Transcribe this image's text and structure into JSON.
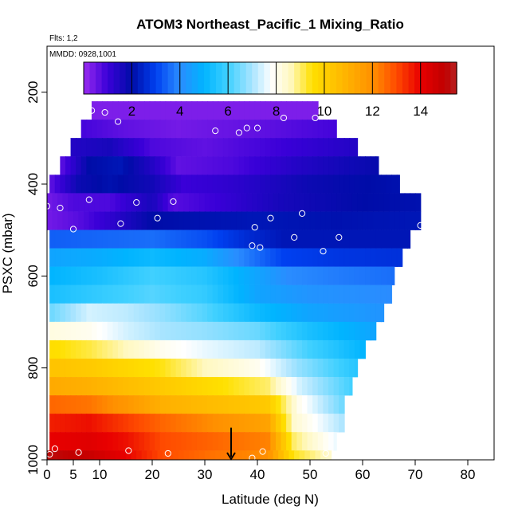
{
  "title": "ATOM3 Northeast_Pacific_1 Mixing_Ratio",
  "flights_label": "Flts: 1,2",
  "mmdd_label": "MMDD: 0928,1001",
  "chart_data": {
    "type": "heatmap",
    "title": "ATOM3 Northeast_Pacific_1 Mixing_Ratio",
    "xlabel": "Latitude (deg N)",
    "ylabel": "PSXC (mbar)",
    "xlim": [
      0,
      85
    ],
    "ylim": [
      1000,
      100
    ],
    "x_ticks": [
      0,
      5,
      10,
      20,
      30,
      40,
      50,
      60,
      70,
      80
    ],
    "y_ticks": [
      200,
      400,
      600,
      800,
      1000
    ],
    "colorbar": {
      "ticks": [
        2,
        4,
        6,
        8,
        10,
        12,
        14
      ],
      "range": [
        0,
        15.5
      ],
      "stops": [
        {
          "v": 0,
          "c": "#9a2bf0"
        },
        {
          "v": 1,
          "c": "#3a00d8"
        },
        {
          "v": 2,
          "c": "#000ca8"
        },
        {
          "v": 3,
          "c": "#0040f0"
        },
        {
          "v": 4,
          "c": "#2a8cff"
        },
        {
          "v": 5,
          "c": "#00b4ff"
        },
        {
          "v": 6,
          "c": "#40d0ff"
        },
        {
          "v": 7,
          "c": "#a8e4ff"
        },
        {
          "v": 7.8,
          "c": "#ffffff"
        },
        {
          "v": 8.6,
          "c": "#fff8c0"
        },
        {
          "v": 9.5,
          "c": "#ffe000"
        },
        {
          "v": 11,
          "c": "#ffb000"
        },
        {
          "v": 12,
          "c": "#ff9000"
        },
        {
          "v": 13,
          "c": "#ff4a00"
        },
        {
          "v": 14,
          "c": "#e80000"
        },
        {
          "v": 15,
          "c": "#c00000"
        },
        {
          "v": 15.5,
          "c": "#b82020"
        }
      ]
    },
    "layers": [
      {
        "p_top": 220,
        "p_bot": 260,
        "x0": 8.5,
        "x1": 51.5,
        "samples": [
          [
            8.5,
            0.3
          ],
          [
            51.5,
            0.3
          ]
        ]
      },
      {
        "p_top": 260,
        "p_bot": 300,
        "x0": 6.5,
        "x1": 55,
        "samples": [
          [
            6.5,
            0.9
          ],
          [
            15,
            0.6
          ],
          [
            25,
            0.4
          ],
          [
            40,
            0.6
          ],
          [
            55,
            0.9
          ]
        ]
      },
      {
        "p_top": 300,
        "p_bot": 340,
        "x0": 4.5,
        "x1": 59,
        "samples": [
          [
            4.5,
            1.4
          ],
          [
            12,
            1.6
          ],
          [
            20,
            0.8
          ],
          [
            30,
            0.6
          ],
          [
            45,
            1.0
          ],
          [
            59,
            1.4
          ]
        ]
      },
      {
        "p_top": 340,
        "p_bot": 380,
        "x0": 2.5,
        "x1": 63,
        "samples": [
          [
            2.5,
            0.6
          ],
          [
            8,
            2.0
          ],
          [
            14,
            2.2
          ],
          [
            20,
            1.4
          ],
          [
            25,
            0.6
          ],
          [
            35,
            0.8
          ],
          [
            48,
            1.4
          ],
          [
            63,
            1.9
          ]
        ]
      },
      {
        "p_top": 380,
        "p_bot": 420,
        "x0": 0.5,
        "x1": 67,
        "samples": [
          [
            0.5,
            0.6
          ],
          [
            6,
            1.8
          ],
          [
            12,
            2.1
          ],
          [
            20,
            1.7
          ],
          [
            26,
            1.0
          ],
          [
            35,
            1.2
          ],
          [
            50,
            1.8
          ],
          [
            67,
            2.1
          ]
        ]
      },
      {
        "p_top": 420,
        "p_bot": 460,
        "x0": 0,
        "x1": 71,
        "samples": [
          [
            0,
            0.4
          ],
          [
            5,
            0.8
          ],
          [
            12,
            0.8
          ],
          [
            20,
            1.6
          ],
          [
            24,
            0.7
          ],
          [
            32,
            1.0
          ],
          [
            44,
            1.6
          ],
          [
            60,
            2.0
          ],
          [
            71,
            2.1
          ]
        ]
      },
      {
        "p_top": 460,
        "p_bot": 500,
        "x0": 0,
        "x1": 71,
        "samples": [
          [
            0,
            0.4
          ],
          [
            6,
            0.7
          ],
          [
            12,
            1.2
          ],
          [
            20,
            2.0
          ],
          [
            28,
            2.1
          ],
          [
            40,
            2.2
          ],
          [
            55,
            2.1
          ],
          [
            71,
            2.2
          ]
        ]
      },
      {
        "p_top": 500,
        "p_bot": 540,
        "x0": 0.5,
        "x1": 69,
        "samples": [
          [
            0.5,
            3.4
          ],
          [
            10,
            3.5
          ],
          [
            20,
            3.6
          ],
          [
            30,
            3.2
          ],
          [
            38,
            2.6
          ],
          [
            45,
            2.2
          ],
          [
            55,
            2.2
          ],
          [
            69,
            2.2
          ]
        ]
      },
      {
        "p_top": 540,
        "p_bot": 580,
        "x0": 0.5,
        "x1": 67.5,
        "samples": [
          [
            0.5,
            4.6
          ],
          [
            10,
            4.8
          ],
          [
            20,
            5.2
          ],
          [
            30,
            4.8
          ],
          [
            38,
            3.8
          ],
          [
            45,
            3.0
          ],
          [
            55,
            2.8
          ],
          [
            67.5,
            2.7
          ]
        ]
      },
      {
        "p_top": 580,
        "p_bot": 620,
        "x0": 0.5,
        "x1": 66,
        "samples": [
          [
            0.5,
            5.0
          ],
          [
            10,
            5.4
          ],
          [
            20,
            6.0
          ],
          [
            30,
            5.6
          ],
          [
            38,
            4.8
          ],
          [
            46,
            4.0
          ],
          [
            55,
            3.8
          ],
          [
            66,
            3.6
          ]
        ]
      },
      {
        "p_top": 620,
        "p_bot": 660,
        "x0": 0.5,
        "x1": 65.5,
        "samples": [
          [
            0.5,
            5.4
          ],
          [
            10,
            5.8
          ],
          [
            20,
            6.2
          ],
          [
            30,
            5.8
          ],
          [
            40,
            4.6
          ],
          [
            50,
            4.2
          ],
          [
            65.5,
            4.0
          ]
        ]
      },
      {
        "p_top": 660,
        "p_bot": 700,
        "x0": 0.5,
        "x1": 64,
        "samples": [
          [
            0.5,
            6.4
          ],
          [
            8,
            7.4
          ],
          [
            15,
            7.2
          ],
          [
            22,
            6.8
          ],
          [
            30,
            6.2
          ],
          [
            40,
            5.2
          ],
          [
            50,
            4.6
          ],
          [
            64,
            4.2
          ]
        ]
      },
      {
        "p_top": 700,
        "p_bot": 740,
        "x0": 0.5,
        "x1": 62.5,
        "samples": [
          [
            0.5,
            8.2
          ],
          [
            8,
            8.0
          ],
          [
            15,
            7.4
          ],
          [
            22,
            7.0
          ],
          [
            30,
            6.8
          ],
          [
            40,
            6.4
          ],
          [
            50,
            5.4
          ],
          [
            62.5,
            4.6
          ]
        ]
      },
      {
        "p_top": 740,
        "p_bot": 780,
        "x0": 0.5,
        "x1": 60.5,
        "samples": [
          [
            0.5,
            9.6
          ],
          [
            8,
            9.2
          ],
          [
            15,
            8.6
          ],
          [
            22,
            8.0
          ],
          [
            30,
            7.6
          ],
          [
            40,
            7.2
          ],
          [
            50,
            6.0
          ],
          [
            60.5,
            5.0
          ]
        ]
      },
      {
        "p_top": 780,
        "p_bot": 820,
        "x0": 0.5,
        "x1": 59,
        "samples": [
          [
            0.5,
            10.4
          ],
          [
            8,
            10.2
          ],
          [
            15,
            9.8
          ],
          [
            22,
            9.4
          ],
          [
            30,
            8.6
          ],
          [
            40,
            8.0
          ],
          [
            48,
            6.8
          ],
          [
            59,
            5.6
          ]
        ]
      },
      {
        "p_top": 820,
        "p_bot": 860,
        "x0": 0.5,
        "x1": 58,
        "samples": [
          [
            0.5,
            11.2
          ],
          [
            8,
            11.0
          ],
          [
            15,
            10.6
          ],
          [
            22,
            10.2
          ],
          [
            32,
            9.6
          ],
          [
            42,
            9.0
          ],
          [
            48,
            7.4
          ],
          [
            58,
            6.0
          ]
        ]
      },
      {
        "p_top": 860,
        "p_bot": 900,
        "x0": 0.5,
        "x1": 56.5,
        "samples": [
          [
            0.5,
            12.6
          ],
          [
            8,
            12.4
          ],
          [
            15,
            11.8
          ],
          [
            22,
            11.0
          ],
          [
            32,
            10.6
          ],
          [
            42,
            10.2
          ],
          [
            48,
            8.0
          ],
          [
            56.5,
            6.4
          ]
        ]
      },
      {
        "p_top": 900,
        "p_bot": 940,
        "x0": 0.5,
        "x1": 56.5,
        "samples": [
          [
            0.5,
            13.6
          ],
          [
            8,
            13.8
          ],
          [
            15,
            13.2
          ],
          [
            22,
            12.6
          ],
          [
            32,
            12.0
          ],
          [
            42,
            11.4
          ],
          [
            47,
            8.4
          ],
          [
            56.5,
            7.0
          ]
        ]
      },
      {
        "p_top": 940,
        "p_bot": 980,
        "x0": 0.5,
        "x1": 55,
        "samples": [
          [
            0.5,
            14.0
          ],
          [
            8,
            14.2
          ],
          [
            15,
            13.8
          ],
          [
            22,
            13.0
          ],
          [
            32,
            12.6
          ],
          [
            42,
            12.2
          ],
          [
            47,
            9.0
          ],
          [
            55,
            7.6
          ]
        ]
      },
      {
        "p_top": 980,
        "p_bot": 1020,
        "x0": 0,
        "x1": 54,
        "samples": [
          [
            0,
            15.2
          ],
          [
            8,
            14.8
          ],
          [
            15,
            14.0
          ],
          [
            22,
            13.0
          ],
          [
            32,
            12.4
          ],
          [
            42,
            12.0
          ],
          [
            47,
            9.4
          ],
          [
            54,
            8.4
          ]
        ]
      }
    ],
    "observations": [
      {
        "x": 8.5,
        "y": 240
      },
      {
        "x": 11,
        "y": 244
      },
      {
        "x": 13.5,
        "y": 264
      },
      {
        "x": 32,
        "y": 284
      },
      {
        "x": 36.5,
        "y": 288
      },
      {
        "x": 38,
        "y": 278
      },
      {
        "x": 40,
        "y": 278
      },
      {
        "x": 45,
        "y": 256
      },
      {
        "x": 51,
        "y": 256
      },
      {
        "x": 0,
        "y": 448
      },
      {
        "x": 2.5,
        "y": 452
      },
      {
        "x": 5,
        "y": 498
      },
      {
        "x": 8,
        "y": 434
      },
      {
        "x": 14,
        "y": 486
      },
      {
        "x": 17,
        "y": 440
      },
      {
        "x": 21,
        "y": 474
      },
      {
        "x": 24,
        "y": 438
      },
      {
        "x": 39.5,
        "y": 494
      },
      {
        "x": 39,
        "y": 534
      },
      {
        "x": 40.5,
        "y": 538
      },
      {
        "x": 42.5,
        "y": 474
      },
      {
        "x": 47,
        "y": 516
      },
      {
        "x": 48.5,
        "y": 464
      },
      {
        "x": 52.5,
        "y": 546
      },
      {
        "x": 55.5,
        "y": 516
      },
      {
        "x": 71,
        "y": 490
      },
      {
        "x": 0.5,
        "y": 988
      },
      {
        "x": 1.5,
        "y": 976
      },
      {
        "x": 6,
        "y": 984
      },
      {
        "x": 15.5,
        "y": 980
      },
      {
        "x": 23,
        "y": 986
      },
      {
        "x": 39,
        "y": 996
      },
      {
        "x": 41,
        "y": 982
      },
      {
        "x": 53,
        "y": 986
      }
    ],
    "arrow_marker": {
      "x": 35,
      "y_from": 930,
      "y_to": 1000
    }
  }
}
